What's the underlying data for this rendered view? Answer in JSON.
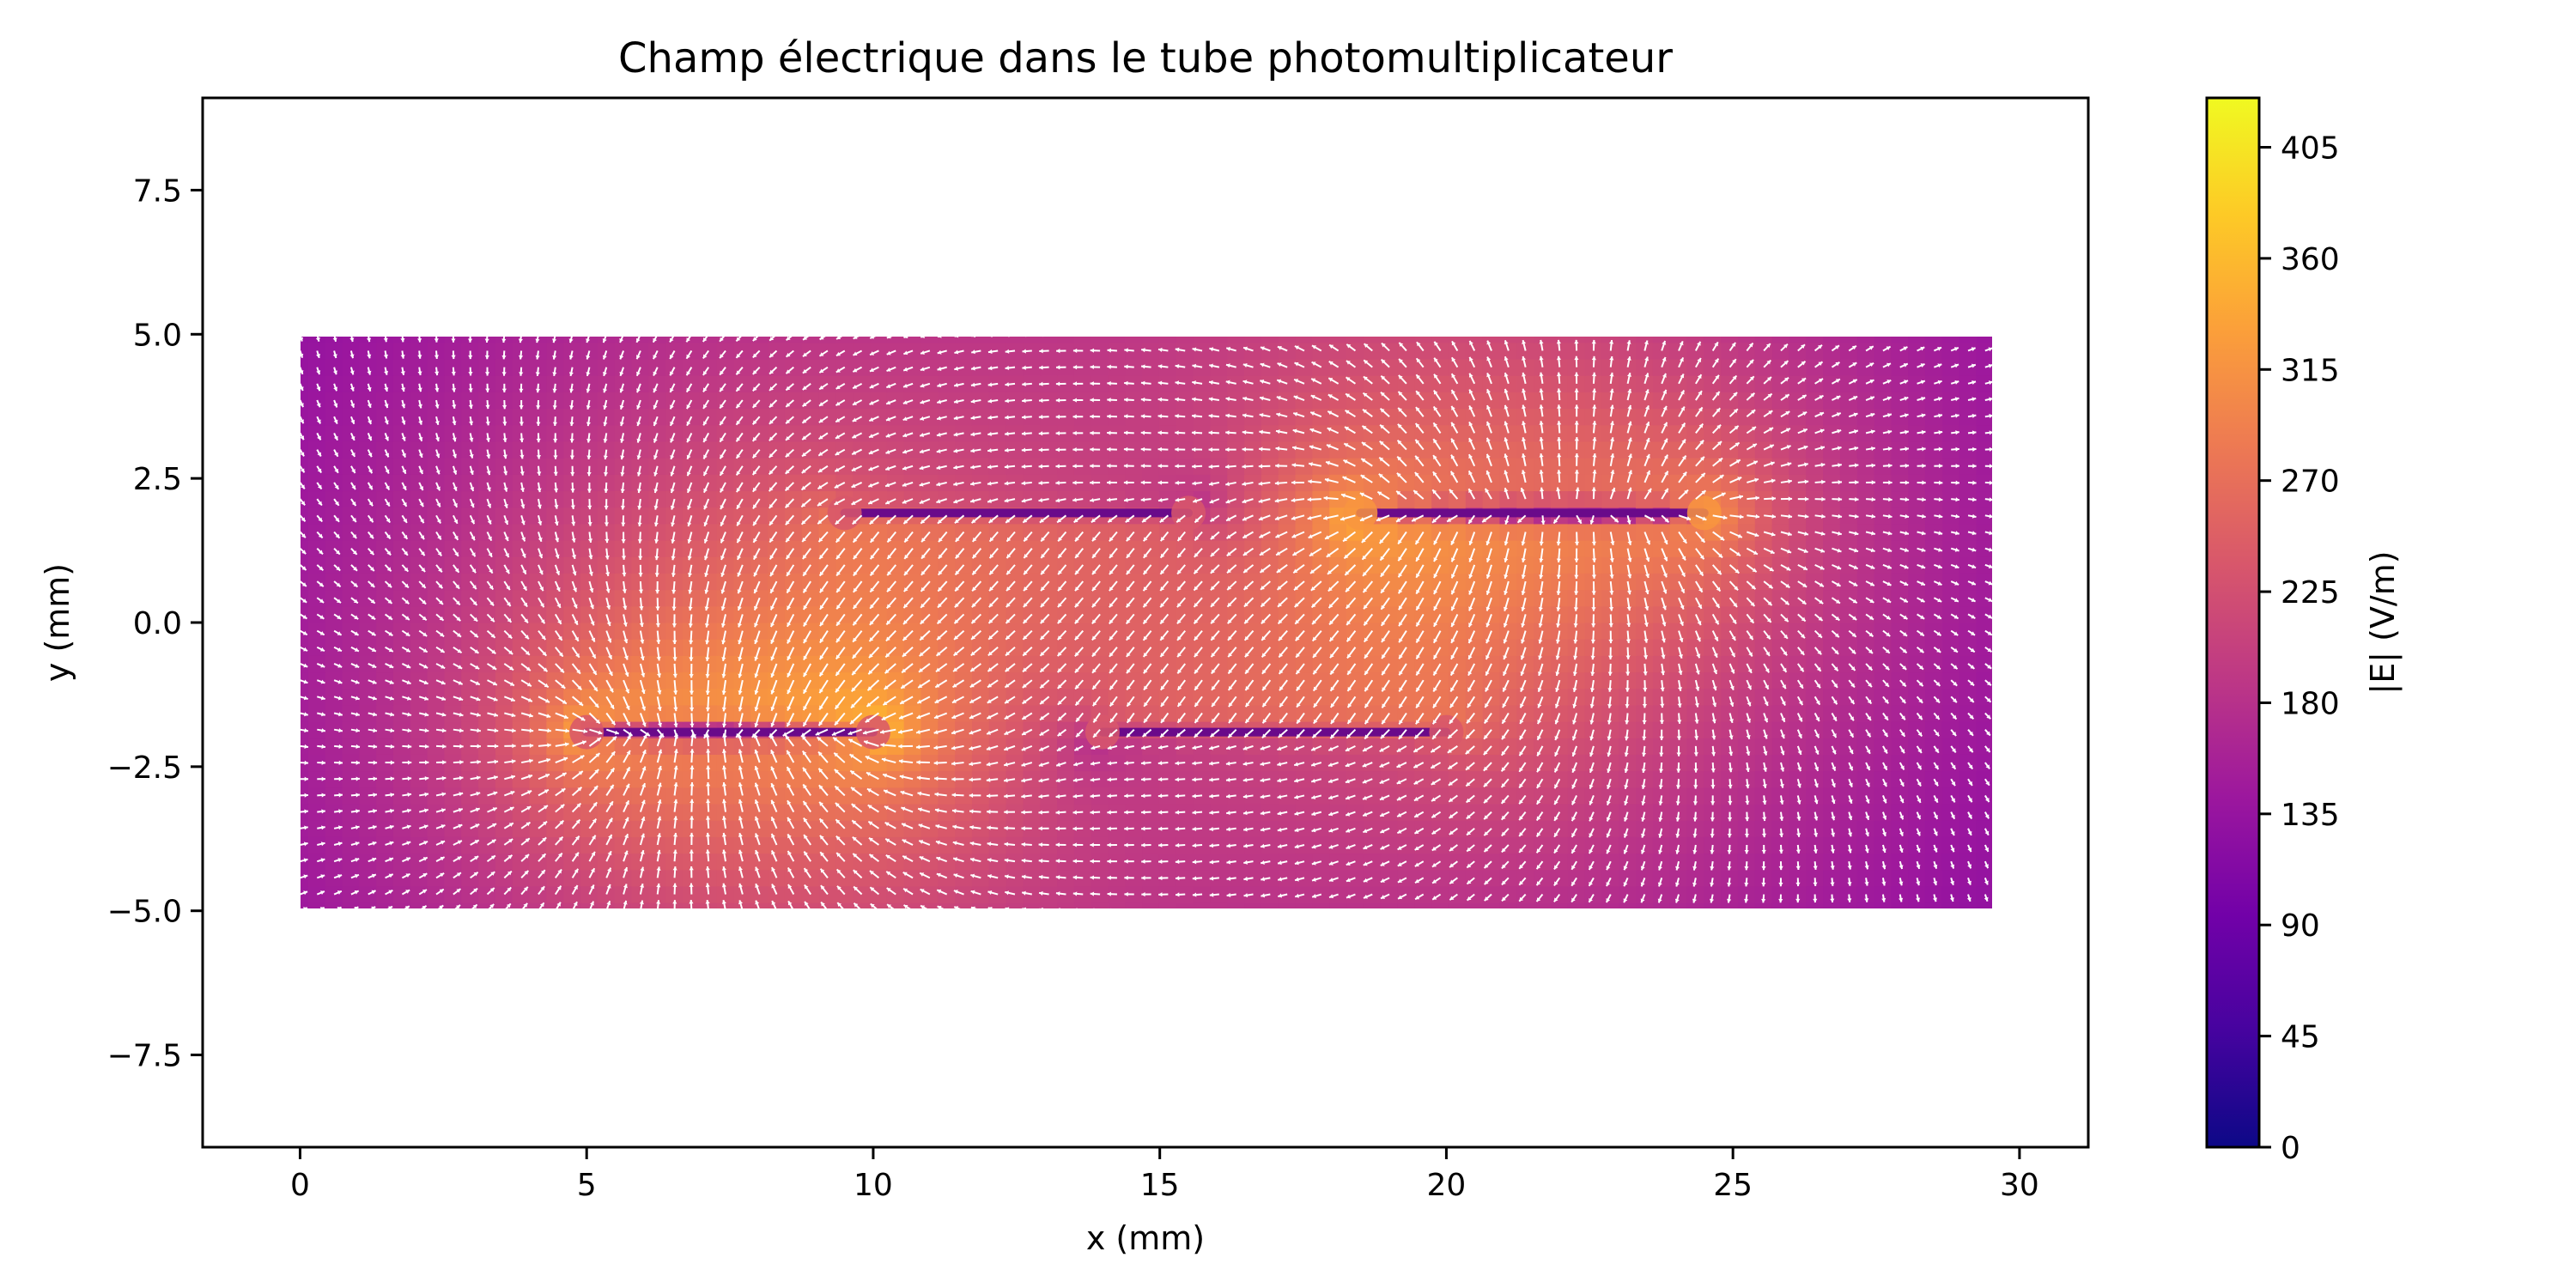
{
  "chart_data": {
    "type": "quiver",
    "title": "Champ électrique dans le tube photomultiplicateur",
    "xlabel": "x (mm)",
    "ylabel": "y (mm)",
    "xlim": [
      -1.7,
      31.2
    ],
    "ylim": [
      -9.1,
      9.1
    ],
    "xticks": [
      0,
      5,
      10,
      15,
      20,
      25,
      30
    ],
    "xtick_labels": [
      "0",
      "5",
      "10",
      "15",
      "20",
      "25",
      "30"
    ],
    "yticks": [
      -7.5,
      -5.0,
      -2.5,
      0.0,
      2.5,
      5.0,
      7.5
    ],
    "ytick_labels": [
      "−7.5",
      "−5.0",
      "−2.5",
      "0.0",
      "2.5",
      "5.0",
      "7.5"
    ],
    "grid": false,
    "field_domain": {
      "x": [
        0,
        29.4
      ],
      "y": [
        -5,
        5
      ]
    },
    "electrodes": [
      {
        "x": [
          5,
          10
        ],
        "y": -1.9,
        "potential": "low"
      },
      {
        "x": [
          9.5,
          15.5
        ],
        "y": 1.9,
        "potential": "mid"
      },
      {
        "x": [
          14,
          20
        ],
        "y": -1.9,
        "potential": "mid"
      },
      {
        "x": [
          18.5,
          24.5
        ],
        "y": 1.9,
        "potential": "high"
      }
    ],
    "colorbar": {
      "label": "|E| (V/m)",
      "min": 0,
      "max": 425,
      "ticks": [
        0,
        45,
        90,
        135,
        180,
        225,
        270,
        315,
        360,
        405
      ],
      "tick_labels": [
        "0",
        "45",
        "90",
        "135",
        "180",
        "225",
        "270",
        "315",
        "360",
        "405"
      ],
      "colormap": "plasma"
    },
    "colors": {
      "plasma_stops": [
        "#0d0887",
        "#46039f",
        "#7201a8",
        "#9c179e",
        "#bd3786",
        "#d8576b",
        "#ed7953",
        "#fb9f3a",
        "#fdca26",
        "#f0f921"
      ],
      "arrow": "#ffffff",
      "axes": "#000000"
    }
  }
}
